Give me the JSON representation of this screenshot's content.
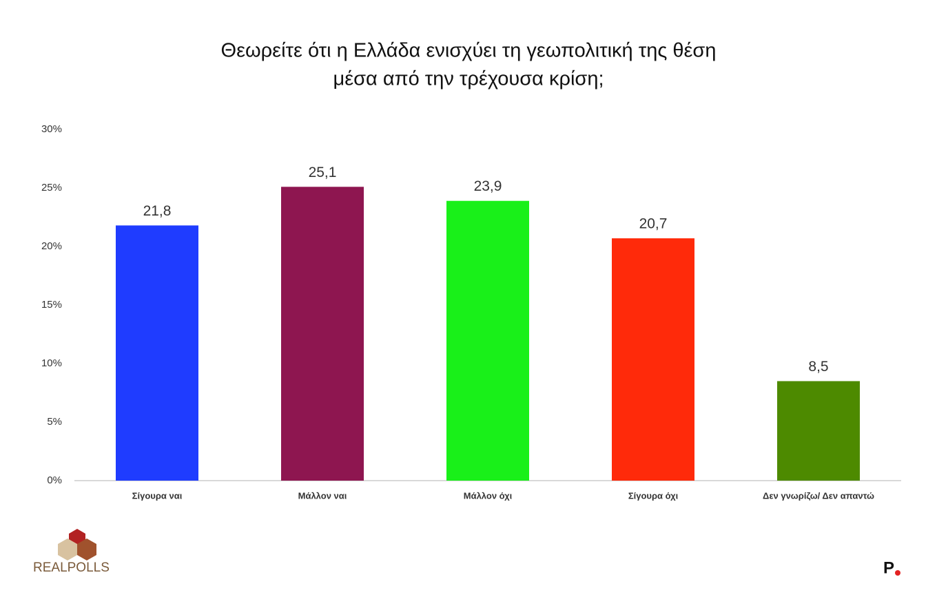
{
  "chart_data": {
    "type": "bar",
    "title_lines": [
      "Θεωρείτε ότι η Ελλάδα ενισχύει τη γεωπολιτική της θέση",
      "μέσα από την τρέχουσα κρίση;"
    ],
    "categories": [
      "Σίγουρα ναι",
      "Μάλλον ναι",
      "Μάλλον όχι",
      "Σίγουρα όχι",
      "Δεν γνωρίζω/ Δεν απαντώ"
    ],
    "values": [
      21.8,
      25.1,
      23.9,
      20.7,
      8.5
    ],
    "value_labels": [
      "21,8",
      "25,1",
      "23,9",
      "20,7",
      "8,5"
    ],
    "colors": [
      "#1f3cff",
      "#8e1650",
      "#19f019",
      "#ff2a0a",
      "#4d8a00"
    ],
    "ylim": [
      0,
      30
    ],
    "yticks": [
      {
        "value": 0,
        "label": "0%"
      },
      {
        "value": 5,
        "label": "5%"
      },
      {
        "value": 10,
        "label": "10%"
      },
      {
        "value": 15,
        "label": "15%"
      },
      {
        "value": 20,
        "label": "20%"
      },
      {
        "value": 25,
        "label": "25%"
      },
      {
        "value": 30,
        "label": "30%"
      }
    ],
    "grid": false
  },
  "logos": {
    "left": "REALPOLLS",
    "right": "P"
  }
}
